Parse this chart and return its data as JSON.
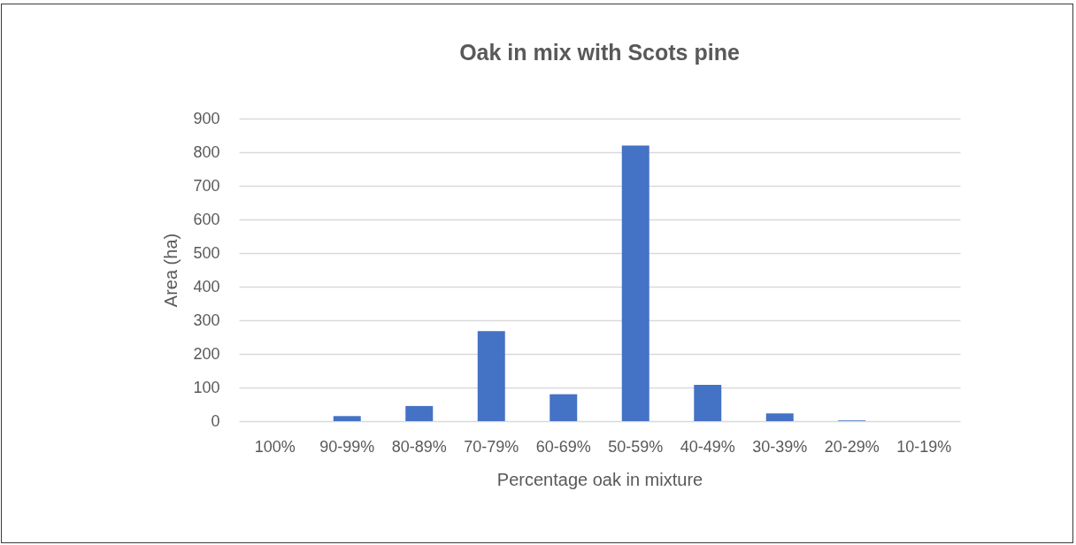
{
  "chart_data": {
    "type": "bar",
    "title": "Oak in mix with Scots pine",
    "xlabel": "Percentage oak in mixture",
    "ylabel": "Area (ha)",
    "categories": [
      "100%",
      "90-99%",
      "80-89%",
      "70-79%",
      "60-69%",
      "50-59%",
      "40-49%",
      "30-39%",
      "20-29%",
      "10-19%"
    ],
    "values": [
      null,
      15,
      45,
      268,
      80,
      820,
      108,
      23,
      2,
      null
    ],
    "color": "#4472c4",
    "ylim": [
      0,
      900
    ],
    "yticks": [
      0,
      100,
      200,
      300,
      400,
      500,
      600,
      700,
      800,
      900
    ],
    "grid": "y"
  }
}
